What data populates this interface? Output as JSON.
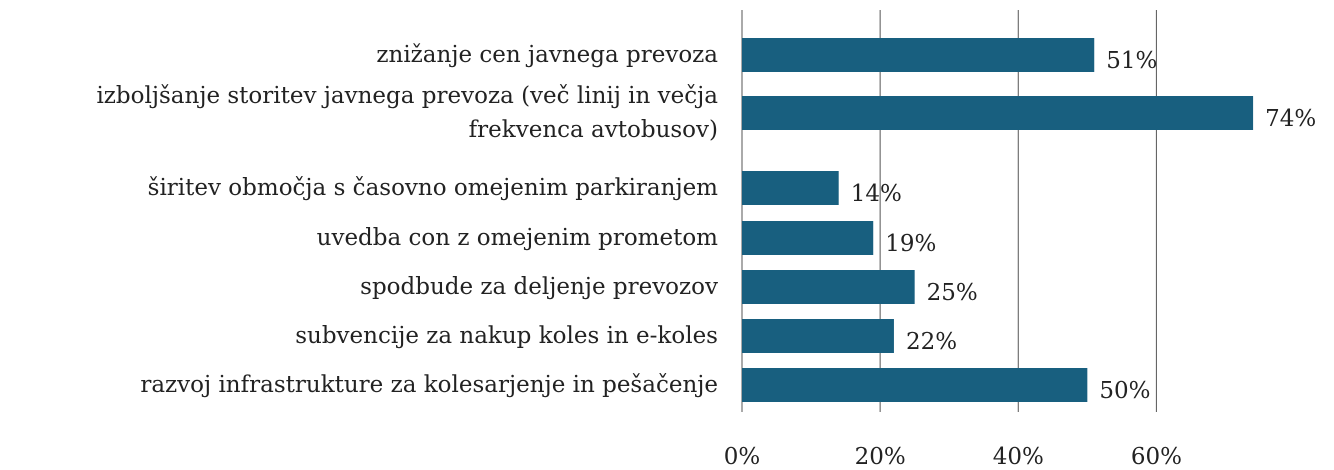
{
  "chart_data": {
    "type": "barh",
    "categories": [
      "znižanje cen javnega prevoza",
      "izboljšanje storitev javnega prevoza (več linij in večja frekvenca avtobusov)",
      "širitev območja s časovno omejenim parkiranjem",
      "uvedba con z omejenim prometom",
      "spodbude za deljenje prevozov",
      "subvencije za nakup koles in e-koles",
      "razvoj infrastrukture za kolesarjenje in pešačenje"
    ],
    "values": [
      51,
      74,
      14,
      19,
      25,
      22,
      50
    ],
    "value_labels": [
      "51%",
      "74%",
      "14%",
      "19%",
      "25%",
      "22%",
      "50%"
    ],
    "color": "#185f7f",
    "xlim": [
      0,
      75
    ],
    "xticks": [
      {
        "value": 0,
        "label": "0%"
      },
      {
        "value": 20,
        "label": "20%"
      },
      {
        "value": 40,
        "label": "40%"
      },
      {
        "value": 60,
        "label": "60%"
      }
    ],
    "grid": true
  }
}
